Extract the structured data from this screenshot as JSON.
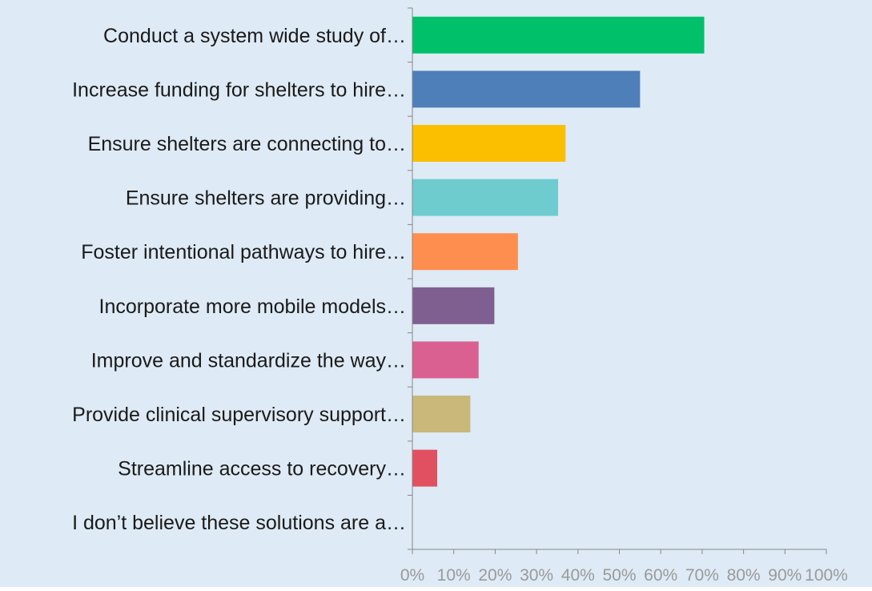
{
  "chart_data": {
    "type": "bar",
    "orientation": "horizontal",
    "categories": [
      "Conduct a system wide study of…",
      "Increase funding for shelters to hire…",
      "Ensure shelters are connecting to…",
      "Ensure shelters are providing…",
      "Foster intentional pathways to hire…",
      "Incorporate more mobile models…",
      "Improve and standardize the way…",
      "Provide clinical supervisory support…",
      "Streamline access to recovery…",
      "I don’t believe these solutions are a…"
    ],
    "values": [
      70.5,
      55,
      37,
      35.2,
      25.5,
      19.8,
      16,
      14,
      6,
      0
    ],
    "colors": [
      "#00c06a",
      "#4f7fb9",
      "#fbbf00",
      "#6ecbce",
      "#fe8e50",
      "#7f5f90",
      "#d96090",
      "#c9b87a",
      "#e05060",
      "#999999"
    ],
    "x_ticks": [
      "0%",
      "10%",
      "20%",
      "30%",
      "40%",
      "50%",
      "60%",
      "70%",
      "80%",
      "90%",
      "100%"
    ],
    "xlim": [
      0,
      100
    ],
    "grid": false,
    "background_color": "#deeaf5",
    "title": "",
    "xlabel": "",
    "ylabel": ""
  }
}
